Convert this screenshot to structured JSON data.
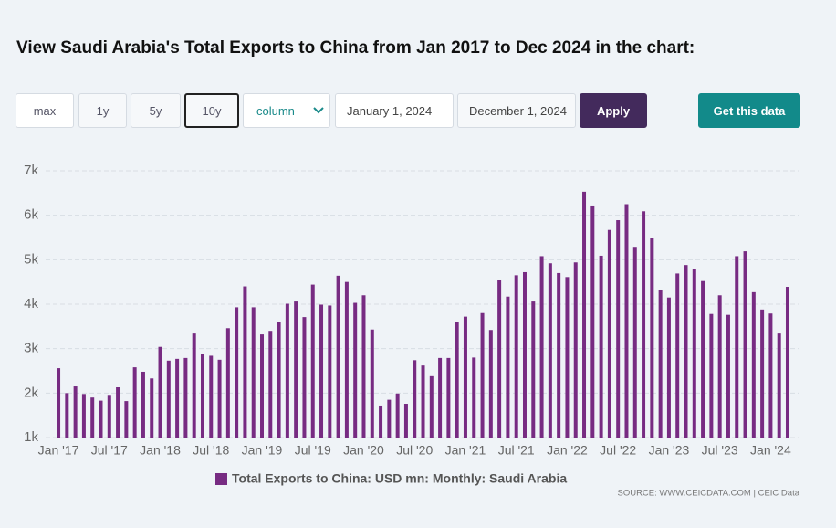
{
  "header": {
    "title": "View Saudi Arabia's Total Exports to China from Jan 2017 to Dec 2024 in the chart:"
  },
  "controls": {
    "ranges": [
      "max",
      "1y",
      "5y",
      "10y"
    ],
    "chart_type": "column",
    "start_date": "January 1, 2024",
    "end_date": "December 1, 2024",
    "apply": "Apply",
    "get_data": "Get this data"
  },
  "chart_data": {
    "type": "bar",
    "categories": [
      "2017-01",
      "2017-02",
      "2017-03",
      "2017-04",
      "2017-05",
      "2017-06",
      "2017-07",
      "2017-08",
      "2017-09",
      "2017-10",
      "2017-11",
      "2017-12",
      "2018-01",
      "2018-02",
      "2018-03",
      "2018-04",
      "2018-05",
      "2018-06",
      "2018-07",
      "2018-08",
      "2018-09",
      "2018-10",
      "2018-11",
      "2018-12",
      "2019-01",
      "2019-02",
      "2019-03",
      "2019-04",
      "2019-05",
      "2019-06",
      "2019-07",
      "2019-08",
      "2019-09",
      "2019-10",
      "2019-11",
      "2019-12",
      "2020-01",
      "2020-02",
      "2020-03",
      "2020-04",
      "2020-05",
      "2020-06",
      "2020-07",
      "2020-08",
      "2020-09",
      "2020-10",
      "2020-11",
      "2020-12",
      "2021-01",
      "2021-02",
      "2021-03",
      "2021-04",
      "2021-05",
      "2021-06",
      "2021-07",
      "2021-08",
      "2021-09",
      "2021-10",
      "2021-11",
      "2021-12",
      "2022-01",
      "2022-02",
      "2022-03",
      "2022-04",
      "2022-05",
      "2022-06",
      "2022-07",
      "2022-08",
      "2022-09",
      "2022-10",
      "2022-11",
      "2022-12",
      "2023-01",
      "2023-02",
      "2023-03",
      "2023-04",
      "2023-05",
      "2023-06",
      "2023-07",
      "2023-08",
      "2023-09",
      "2023-10",
      "2023-11",
      "2023-12",
      "2024-01",
      "2024-02",
      "2024-03"
    ],
    "series": [
      {
        "name": "Total Exports to China: USD mn: Monthly: Saudi Arabia",
        "color": "#772b82",
        "values": [
          2560,
          2000,
          2150,
          1980,
          1900,
          1830,
          1960,
          2130,
          1820,
          2580,
          2480,
          2330,
          3040,
          2730,
          2770,
          2790,
          3340,
          2880,
          2840,
          2750,
          3460,
          3930,
          4400,
          3930,
          3320,
          3400,
          3600,
          4010,
          4060,
          3710,
          4440,
          3990,
          3970,
          4640,
          4500,
          4030,
          4200,
          3430,
          1720,
          1850,
          1990,
          1760,
          2740,
          2620,
          2380,
          2790,
          2790,
          3600,
          3720,
          2800,
          3800,
          3420,
          4540,
          4170,
          4650,
          4720,
          4060,
          5080,
          4920,
          4700,
          4610,
          4940,
          6530,
          6220,
          5090,
          5670,
          5890,
          6250,
          5290,
          6090,
          5490,
          4310,
          4150,
          4690,
          4880,
          4800,
          4520,
          3780,
          4200,
          3760,
          5080,
          5190,
          4270,
          3880,
          3790,
          3340,
          4390
        ]
      }
    ],
    "xticks": [
      {
        "value": "2017-01",
        "label": "Jan '17"
      },
      {
        "value": "2017-07",
        "label": "Jul '17"
      },
      {
        "value": "2018-01",
        "label": "Jan '18"
      },
      {
        "value": "2018-07",
        "label": "Jul '18"
      },
      {
        "value": "2019-01",
        "label": "Jan '19"
      },
      {
        "value": "2019-07",
        "label": "Jul '19"
      },
      {
        "value": "2020-01",
        "label": "Jan '20"
      },
      {
        "value": "2020-07",
        "label": "Jul '20"
      },
      {
        "value": "2021-01",
        "label": "Jan '21"
      },
      {
        "value": "2021-07",
        "label": "Jul '21"
      },
      {
        "value": "2022-01",
        "label": "Jan '22"
      },
      {
        "value": "2022-07",
        "label": "Jul '22"
      },
      {
        "value": "2023-01",
        "label": "Jan '23"
      },
      {
        "value": "2023-07",
        "label": "Jul '23"
      },
      {
        "value": "2024-01",
        "label": "Jan '24"
      }
    ],
    "ylim": [
      1000,
      7000
    ],
    "yticks": [
      {
        "value": 1000,
        "label": "1k"
      },
      {
        "value": 2000,
        "label": "2k"
      },
      {
        "value": 3000,
        "label": "3k"
      },
      {
        "value": 4000,
        "label": "4k"
      },
      {
        "value": 5000,
        "label": "5k"
      },
      {
        "value": 6000,
        "label": "6k"
      },
      {
        "value": 7000,
        "label": "7k"
      }
    ],
    "grid": true
  },
  "source": "SOURCE: WWW.CEICDATA.COM | CEIC Data"
}
